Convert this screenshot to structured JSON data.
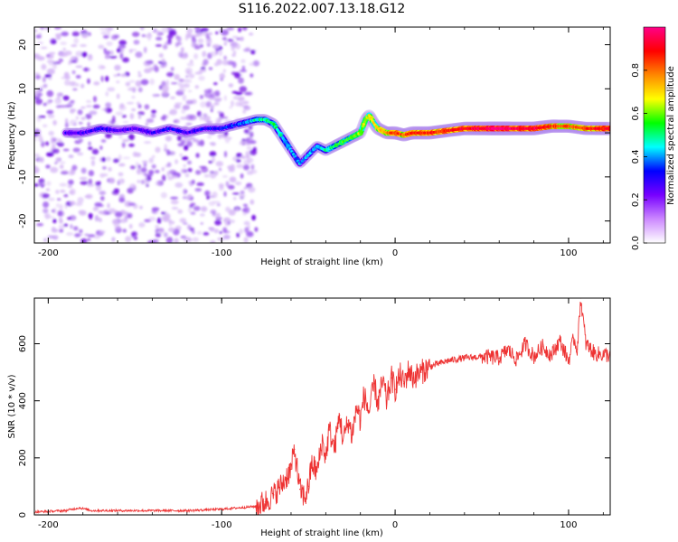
{
  "page": {
    "title": "S116.2022.007.13.18.G12"
  },
  "chart_data": [
    {
      "type": "heatmap",
      "xlabel": "Height of straight line (km)",
      "ylabel": "Frequency (Hz)",
      "xlim": [
        -208,
        124
      ],
      "ylim": [
        -25,
        24
      ],
      "xticks": [
        -200,
        -100,
        0,
        100
      ],
      "yticks": [
        -20,
        -10,
        0,
        10,
        20
      ],
      "colorbar": {
        "label": "Normalized spectral amplitude",
        "range": [
          0,
          1
        ],
        "ticks": [
          "0.0",
          "0.2",
          "0.4",
          "0.6",
          "0.8"
        ],
        "colors": [
          "#ffffff",
          "#cc88ff",
          "#7700ff",
          "#0000ff",
          "#00ffff",
          "#00ff00",
          "#ffff00",
          "#ff8800",
          "#ff0000",
          "#ff0088"
        ]
      },
      "ridge": {
        "x": [
          -190,
          -180,
          -170,
          -160,
          -150,
          -140,
          -130,
          -120,
          -110,
          -100,
          -90,
          -80,
          -75,
          -70,
          -65,
          -60,
          -55,
          -50,
          -45,
          -40,
          -35,
          -30,
          -25,
          -20,
          -17,
          -15,
          -12,
          -10,
          -5,
          0,
          5,
          10,
          20,
          30,
          40,
          50,
          60,
          70,
          80,
          90,
          100,
          110,
          124
        ],
        "y": [
          0,
          0,
          1,
          0.5,
          1,
          0,
          1,
          0,
          1,
          1,
          2,
          3,
          3,
          2,
          -1,
          -4,
          -7,
          -5,
          -3,
          -4,
          -3,
          -2,
          -1,
          0,
          3,
          4,
          2,
          1,
          0,
          0,
          -0.5,
          0,
          0,
          0.5,
          1,
          1,
          1,
          1,
          1,
          1.5,
          1.5,
          1,
          1
        ]
      },
      "amplitude": [
        0.2,
        0.2,
        0.25,
        0.2,
        0.2,
        0.2,
        0.25,
        0.2,
        0.25,
        0.25,
        0.3,
        0.4,
        0.45,
        0.45,
        0.4,
        0.35,
        0.35,
        0.35,
        0.35,
        0.4,
        0.45,
        0.5,
        0.5,
        0.55,
        0.6,
        0.6,
        0.6,
        0.65,
        0.7,
        0.8,
        0.75,
        0.8,
        0.8,
        0.8,
        0.85,
        0.9,
        0.95,
        0.9,
        0.9,
        0.8,
        0.75,
        0.8,
        0.85
      ],
      "noise_region_x": [
        -208,
        -80
      ]
    },
    {
      "type": "line",
      "xlabel": "Height of straight line (km)",
      "ylabel": "SNR (10 * v/v)",
      "xlim": [
        -208,
        124
      ],
      "ylim": [
        0,
        760
      ],
      "xticks": [
        -200,
        -100,
        0,
        100
      ],
      "yticks": [
        0,
        200,
        400,
        600
      ],
      "color": "#ee3333",
      "x": [
        -208,
        -190,
        -182,
        -175,
        -150,
        -120,
        -100,
        -90,
        -80,
        -75,
        -70,
        -65,
        -60,
        -58,
        -55,
        -52,
        -50,
        -48,
        -45,
        -42,
        -40,
        -38,
        -35,
        -32,
        -30,
        -27,
        -25,
        -22,
        -20,
        -18,
        -15,
        -12,
        -10,
        -7,
        -5,
        -2,
        0,
        3,
        5,
        8,
        10,
        15,
        20,
        25,
        30,
        40,
        50,
        60,
        65,
        70,
        75,
        80,
        85,
        90,
        95,
        100,
        103,
        105,
        107,
        110,
        115,
        124
      ],
      "y": [
        10,
        15,
        25,
        15,
        15,
        15,
        20,
        25,
        30,
        45,
        70,
        110,
        160,
        230,
        90,
        60,
        100,
        180,
        150,
        260,
        200,
        300,
        230,
        350,
        260,
        330,
        280,
        380,
        330,
        420,
        360,
        460,
        390,
        470,
        400,
        480,
        440,
        490,
        460,
        510,
        480,
        500,
        520,
        530,
        540,
        550,
        555,
        550,
        580,
        545,
        600,
        555,
        590,
        560,
        610,
        540,
        620,
        580,
        760,
        600,
        565,
        560
      ]
    }
  ]
}
